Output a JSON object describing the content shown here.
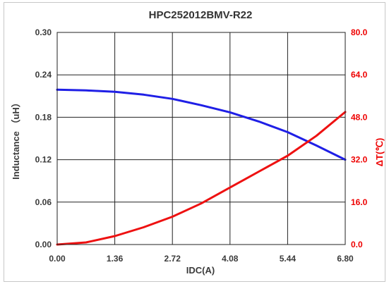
{
  "chart_data": {
    "type": "line",
    "title": "HPC252012BMV-R22",
    "xlabel": "IDC(A)",
    "ylabel_left": "Inductance （uH）",
    "ylabel_right": "ΔT(℃)",
    "xlim": [
      0,
      6.8
    ],
    "ylim_left": [
      0,
      0.3
    ],
    "ylim_right": [
      0,
      80
    ],
    "x_ticks": [
      "0.00",
      "1.36",
      "2.72",
      "4.08",
      "5.44",
      "6.80"
    ],
    "y_left_ticks": [
      "0.00",
      "0.06",
      "0.12",
      "0.18",
      "0.24",
      "0.30"
    ],
    "y_right_ticks": [
      "0.0",
      "16.0",
      "32.0",
      "48.0",
      "64.0",
      "80.0"
    ],
    "grid": true,
    "series": [
      {
        "axis": "left",
        "color": "#1f1fe6",
        "x": [
          0,
          0.68,
          1.36,
          2.04,
          2.72,
          3.4,
          4.08,
          4.76,
          5.44,
          6.12,
          6.8
        ],
        "y": [
          0.219,
          0.218,
          0.216,
          0.212,
          0.206,
          0.197,
          0.187,
          0.174,
          0.159,
          0.14,
          0.12
        ]
      },
      {
        "axis": "right",
        "color": "#ee1111",
        "x": [
          0,
          0.68,
          1.36,
          2.04,
          2.72,
          3.4,
          4.08,
          4.76,
          5.44,
          6.12,
          6.8
        ],
        "y": [
          0,
          0.8,
          3.2,
          6.5,
          10.5,
          15.5,
          21.5,
          27.5,
          33.5,
          41,
          50
        ]
      }
    ]
  }
}
